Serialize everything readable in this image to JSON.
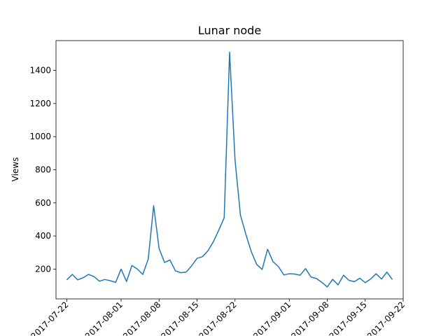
{
  "chart_data": {
    "type": "line",
    "title": "Lunar node",
    "xlabel": "",
    "ylabel": "Views",
    "x_start": "2017-07-22",
    "x_end": "2017-09-20",
    "xlim": [
      "2017-07-20",
      "2017-09-22"
    ],
    "ylim": [
      20,
      1580
    ],
    "grid": false,
    "line_color": "#1f77b4",
    "x_ticks": [
      "2017-07-22",
      "2017-08-01",
      "2017-08-08",
      "2017-08-15",
      "2017-08-22",
      "2017-09-01",
      "2017-09-08",
      "2017-09-15",
      "2017-09-22"
    ],
    "y_ticks": [
      200,
      400,
      600,
      800,
      1000,
      1200,
      1400
    ],
    "series": [
      {
        "values": [
          135,
          168,
          135,
          148,
          168,
          155,
          127,
          137,
          130,
          120,
          200,
          125,
          222,
          200,
          168,
          260,
          583,
          325,
          240,
          255,
          190,
          178,
          182,
          220,
          265,
          275,
          310,
          365,
          435,
          510,
          1510,
          860,
          525,
          410,
          305,
          228,
          198,
          320,
          245,
          215,
          165,
          172,
          170,
          163,
          203,
          152,
          143,
          120,
          92,
          138,
          105,
          163,
          132,
          124,
          145,
          118,
          140,
          172,
          140,
          182,
          137
        ]
      }
    ]
  }
}
